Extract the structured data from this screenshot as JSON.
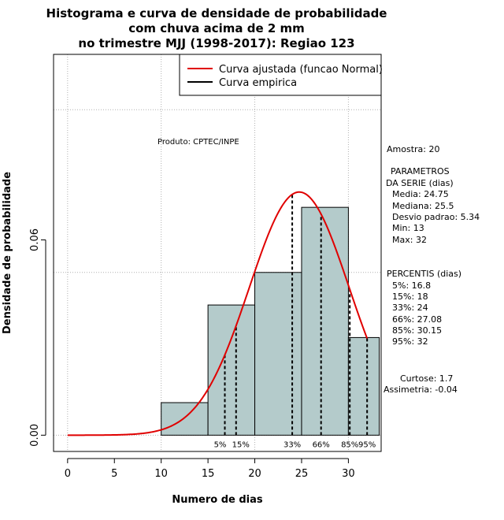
{
  "title": {
    "line1": "Histograma e curva de densidade de probabilidade",
    "line2": "com chuva acima de 2 mm",
    "line3": "no trimestre MJJ (1998-2017): Regiao 123"
  },
  "product": "Produto: CPTEC/INPE",
  "legend": {
    "normal": "Curva ajustada (funcao Normal)",
    "empirical": "Curva empirica"
  },
  "stats": {
    "sample": "Amostra: 20",
    "params_title1": "PARAMETROS",
    "params_title2": "DA SERIE (dias)",
    "mean": "Media: 24.75",
    "median": "Mediana: 25.5",
    "sd": "Desvio padrao: 5.34",
    "min": "Min: 13",
    "max": "Max: 32",
    "perc_title": "PERCENTIS (dias)",
    "p5": "5%: 16.8",
    "p15": "15%: 18",
    "p33": "33%: 24",
    "p66": "66%: 27.08",
    "p85": "85%: 30.15",
    "p95": "95%: 32",
    "kurtosis": "Curtose: 1.7",
    "skewness": "Assimetria: -0.04"
  },
  "colors": {
    "bar_fill": "#b4cbcb",
    "normal_curve": "#e00000",
    "grid": "#b0b0b0"
  },
  "chart_data": {
    "type": "bar",
    "title": "Histograma e curva de densidade de probabilidade com chuva acima de 2 mm no trimestre MJJ (1998-2017): Regiao 123",
    "xlabel": "Numero de dias",
    "ylabel": "Densidade de probabilidade",
    "xlim": [
      -1.5,
      33.5
    ],
    "ylim": [
      -0.005,
      0.117
    ],
    "x_ticks": [
      "0",
      "5",
      "10",
      "15",
      "20",
      "25",
      "30"
    ],
    "x_tick_values": [
      0,
      5,
      10,
      15,
      20,
      25,
      30
    ],
    "y_ticks": [
      "0.00",
      "0.06"
    ],
    "y_tick_values": [
      0.0,
      0.06
    ],
    "grid": true,
    "histogram": [
      {
        "x0": 10,
        "x1": 15,
        "density": 0.01
      },
      {
        "x0": 15,
        "x1": 20,
        "density": 0.04
      },
      {
        "x0": 20,
        "x1": 25,
        "density": 0.05
      },
      {
        "x0": 25,
        "x1": 30,
        "density": 0.07
      },
      {
        "x0": 30,
        "x1": 33.3,
        "density": 0.03
      }
    ],
    "normal_fit": {
      "mean": 24.75,
      "sd": 5.34,
      "x_range": [
        0,
        32
      ]
    },
    "percentiles": [
      {
        "label": "5%",
        "value": 16.8
      },
      {
        "label": "15%",
        "value": 18
      },
      {
        "label": "33%",
        "value": 24
      },
      {
        "label": "66%",
        "value": 27.08
      },
      {
        "label": "85%",
        "value": 30.15
      },
      {
        "label": "95%",
        "value": 32
      }
    ],
    "legend_position": "top-right"
  }
}
